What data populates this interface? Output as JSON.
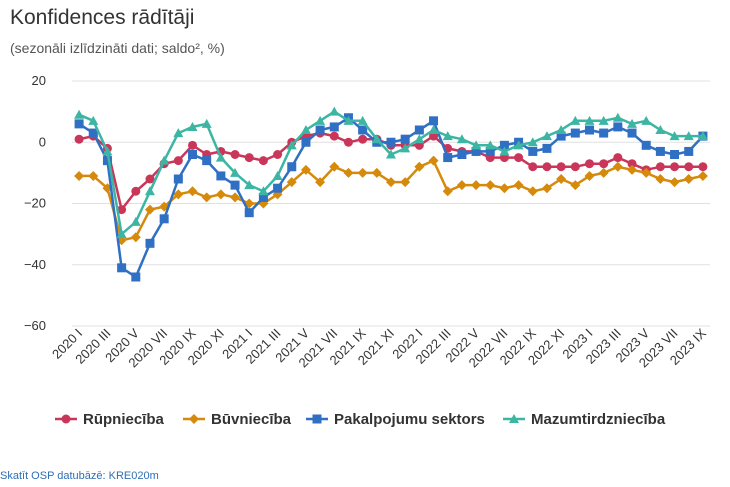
{
  "chart_data": {
    "type": "line",
    "title": "Konfidences rādītāji",
    "subtitle": "(sezonāli izlīdzināti dati; saldo², %)",
    "xlabel": "",
    "ylabel": "",
    "ylim": [
      -60,
      20
    ],
    "yticks": [
      20,
      0,
      -20,
      -40,
      -60
    ],
    "ytick_labels": [
      "20",
      "0",
      "−20",
      "−40",
      "−60"
    ],
    "grid": true,
    "legend_position": "bottom",
    "x": [
      "2020 I",
      "2020 II",
      "2020 III",
      "2020 IV",
      "2020 V",
      "2020 VI",
      "2020 VII",
      "2020 VIII",
      "2020 IX",
      "2020 X",
      "2020 XI",
      "2020 XII",
      "2021 I",
      "2021 II",
      "2021 III",
      "2021 IV",
      "2021 V",
      "2021 VI",
      "2021 VII",
      "2021 VIII",
      "2021 IX",
      "2021 X",
      "2021 XI",
      "2021 XII",
      "2022 I",
      "2022 II",
      "2022 III",
      "2022 IV",
      "2022 V",
      "2022 VI",
      "2022 VII",
      "2022 VIII",
      "2022 IX",
      "2022 X",
      "2022 XI",
      "2022 XII",
      "2023 I",
      "2023 II",
      "2023 III",
      "2023 IV",
      "2023 V",
      "2023 VI",
      "2023 VII",
      "2023 VIII",
      "2023 IX"
    ],
    "xtick_labels": [
      "2020 I",
      "2020 III",
      "2020 V",
      "2020 VII",
      "2020 IX",
      "2020 XI",
      "2021 I",
      "2021 III",
      "2021 V",
      "2021 VII",
      "2021 IX",
      "2021 XI",
      "2022 I",
      "2022 III",
      "2022 V",
      "2022 VII",
      "2022 IX",
      "2022 XI",
      "2023 I",
      "2023 III",
      "2023 V",
      "2023 VII",
      "2023 IX"
    ],
    "series": [
      {
        "name": "Rūpniecība",
        "color": "#c9365a",
        "marker": "circle",
        "values": [
          1,
          2,
          -2,
          -22,
          -16,
          -12,
          -7,
          -6,
          -1,
          -4,
          -3,
          -4,
          -5,
          -6,
          -4,
          0,
          2,
          3,
          2,
          0,
          1,
          1,
          -1,
          -1,
          -1,
          2,
          -2,
          -3,
          -3,
          -5,
          -5,
          -5,
          -8,
          -8,
          -8,
          -8,
          -7,
          -7,
          -5,
          -7,
          -9,
          -8,
          -8,
          -8,
          -8
        ]
      },
      {
        "name": "Būvniecība",
        "color": "#d68a0c",
        "marker": "diamond",
        "values": [
          -11,
          -11,
          -15,
          -32,
          -31,
          -22,
          -21,
          -17,
          -16,
          -18,
          -17,
          -18,
          -20,
          -20,
          -17,
          -13,
          -9,
          -13,
          -8,
          -10,
          -10,
          -10,
          -13,
          -13,
          -8,
          -6,
          -16,
          -14,
          -14,
          -14,
          -15,
          -14,
          -16,
          -15,
          -12,
          -14,
          -11,
          -10,
          -8,
          -9,
          -10,
          -12,
          -13,
          -12,
          -11
        ]
      },
      {
        "name": "Pakalpojumu sektors",
        "color": "#2f6fc4",
        "marker": "square",
        "values": [
          6,
          3,
          -6,
          -41,
          -44,
          -33,
          -25,
          -12,
          -4,
          -6,
          -11,
          -14,
          -23,
          -18,
          -15,
          -8,
          0,
          4,
          5,
          8,
          4,
          0,
          0,
          1,
          4,
          7,
          -5,
          -4,
          -3,
          -3,
          -1,
          0,
          -3,
          -2,
          2,
          3,
          4,
          3,
          5,
          3,
          -1,
          -3,
          -4,
          -3,
          2
        ]
      },
      {
        "name": "Mazumtirdzniecība",
        "color": "#3cb6a3",
        "marker": "triangle",
        "values": [
          9,
          7,
          -3,
          -30,
          -26,
          -16,
          -6,
          3,
          5,
          6,
          -5,
          -10,
          -14,
          -16,
          -11,
          -1,
          4,
          7,
          10,
          7,
          7,
          1,
          -4,
          -2,
          1,
          4,
          2,
          1,
          -1,
          -1,
          -3,
          -1,
          0,
          2,
          4,
          7,
          7,
          7,
          8,
          6,
          7,
          4,
          2,
          2,
          2
        ]
      }
    ]
  },
  "source_text": "Skatīt OSP datubāzē: KRE020m"
}
